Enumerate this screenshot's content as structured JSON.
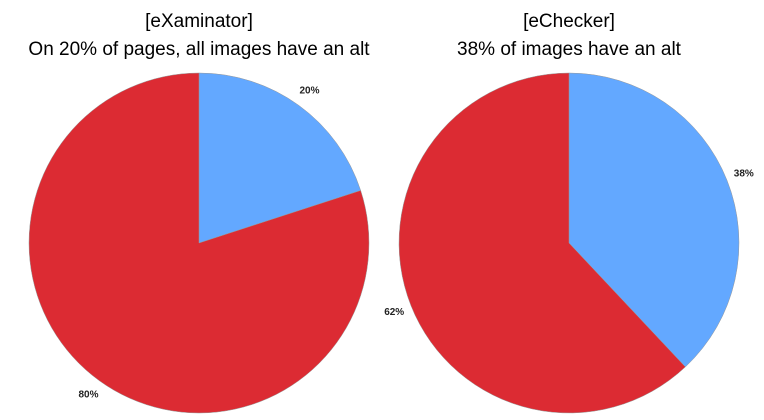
{
  "chart_data": [
    {
      "type": "pie",
      "title": "[eXaminator]",
      "subtitle": "On 20% of pages, all images have an alt",
      "values": [
        20,
        80
      ],
      "value_labels": [
        "20%",
        "80%"
      ],
      "colors": [
        "#63a8ff",
        "#dc2b33"
      ]
    },
    {
      "type": "pie",
      "title": "[eChecker]",
      "subtitle": "38% of images have an alt",
      "values": [
        38,
        62
      ],
      "value_labels": [
        "38%",
        "62%"
      ],
      "colors": [
        "#63a8ff",
        "#dc2b33"
      ]
    }
  ]
}
